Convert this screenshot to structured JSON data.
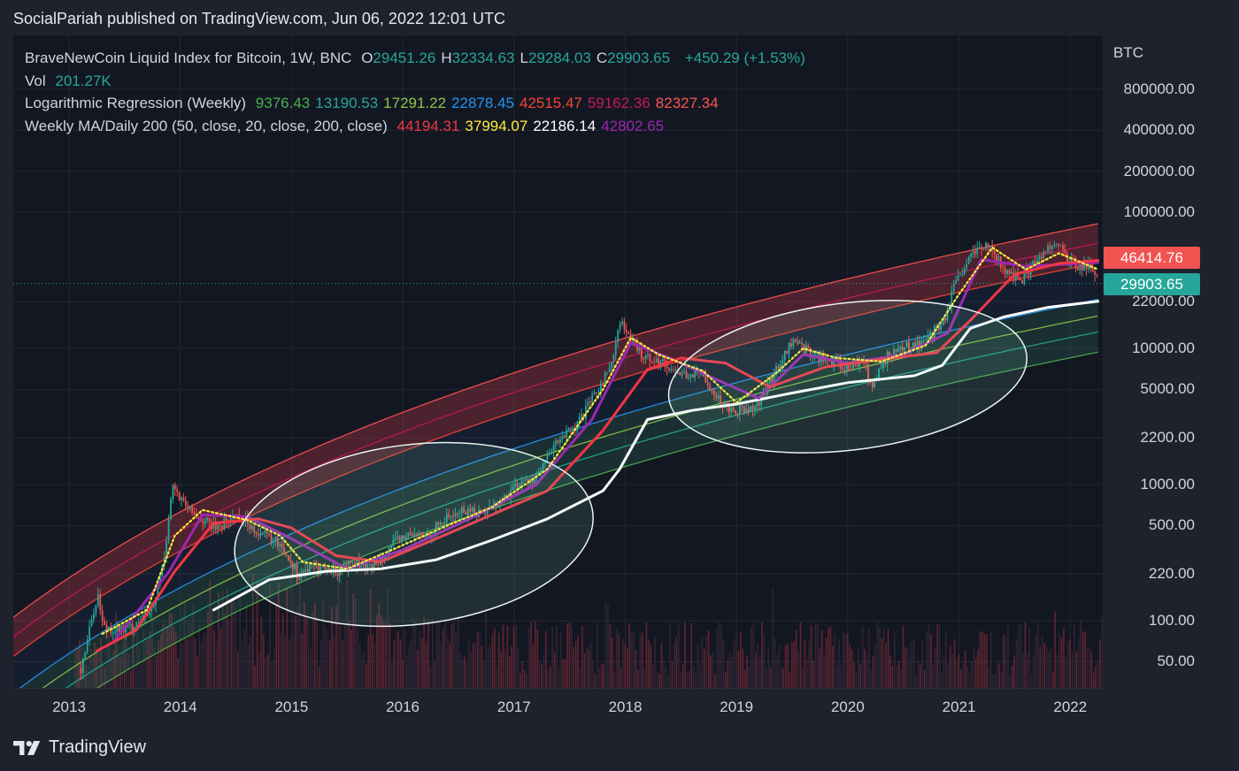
{
  "header": {
    "published_line": "SocialPariah published on TradingView.com, Jun 06, 2022 12:01 UTC"
  },
  "footer": {
    "brand": "TradingView"
  },
  "legend": {
    "symbol": {
      "name": "BraveNewCoin Liquid Index for Bitcoin, 1W, BNC",
      "ohlc": [
        {
          "k": "O",
          "v": "29451.26"
        },
        {
          "k": "H",
          "v": "32334.63"
        },
        {
          "k": "L",
          "v": "29284.03"
        },
        {
          "k": "C",
          "v": "29903.65"
        }
      ],
      "change": "+450.29 (+1.53%)"
    },
    "volume": {
      "label": "Vol",
      "value": "201.27K"
    },
    "log_regression": {
      "label": "Logarithmic Regression (Weekly)",
      "values": [
        {
          "text": "9376.43",
          "color": "#4caf50"
        },
        {
          "text": "13190.53",
          "color": "#26a69a"
        },
        {
          "text": "17291.22",
          "color": "#8bc34a"
        },
        {
          "text": "22878.45",
          "color": "#2196f3"
        },
        {
          "text": "42515.47",
          "color": "#f44336"
        },
        {
          "text": "59162.36",
          "color": "#c2185b"
        },
        {
          "text": "82327.34",
          "color": "#ff5252"
        }
      ]
    },
    "moving_averages": {
      "label": "Weekly MA/Daily 200 (50, close, 20, close, 200, close)",
      "values": [
        {
          "text": "44194.31",
          "color": "#f23645"
        },
        {
          "text": "37994.07",
          "color": "#ffeb3b"
        },
        {
          "text": "22186.14",
          "color": "#ffffff"
        },
        {
          "text": "42802.65",
          "color": "#9c27b0"
        }
      ]
    }
  },
  "price_axis": {
    "currency": "BTC",
    "ticks": [
      "800000.00",
      "400000.00",
      "200000.00",
      "100000.00",
      "22000.00",
      "10000.00",
      "5000.00",
      "2200.00",
      "1000.00",
      "500.00",
      "220.00",
      "100.00",
      "50.00"
    ],
    "tags": [
      {
        "text": "46414.76",
        "color": "#f05350"
      },
      {
        "text": "29903.65",
        "color": "#26a69a"
      }
    ]
  },
  "time_axis": {
    "years": [
      "2013",
      "2014",
      "2015",
      "2016",
      "2017",
      "2018",
      "2019",
      "2020",
      "2021",
      "2022"
    ]
  },
  "chart_data": {
    "type": "candlestick",
    "x_unit": "year",
    "y_scale": "log",
    "ylim": [
      35,
      1100000
    ],
    "xlim": [
      2012.5,
      2022.25
    ],
    "price_path": [
      [
        2013.1,
        45
      ],
      [
        2013.25,
        160
      ],
      [
        2013.3,
        90
      ],
      [
        2013.5,
        85
      ],
      [
        2013.75,
        120
      ],
      [
        2013.85,
        300
      ],
      [
        2013.92,
        1000
      ],
      [
        2014.0,
        750
      ],
      [
        2014.1,
        620
      ],
      [
        2014.3,
        480
      ],
      [
        2014.5,
        600
      ],
      [
        2014.7,
        450
      ],
      [
        2014.9,
        360
      ],
      [
        2015.05,
        220
      ],
      [
        2015.2,
        250
      ],
      [
        2015.4,
        230
      ],
      [
        2015.55,
        270
      ],
      [
        2015.7,
        240
      ],
      [
        2015.85,
        330
      ],
      [
        2016.0,
        420
      ],
      [
        2016.2,
        420
      ],
      [
        2016.4,
        580
      ],
      [
        2016.55,
        650
      ],
      [
        2016.7,
        620
      ],
      [
        2016.9,
        780
      ],
      [
        2017.0,
        970
      ],
      [
        2017.2,
        1150
      ],
      [
        2017.4,
        2200
      ],
      [
        2017.55,
        2600
      ],
      [
        2017.7,
        4300
      ],
      [
        2017.85,
        7000
      ],
      [
        2017.95,
        16000
      ],
      [
        2018.05,
        11000
      ],
      [
        2018.15,
        9000
      ],
      [
        2018.3,
        8000
      ],
      [
        2018.5,
        6500
      ],
      [
        2018.7,
        6400
      ],
      [
        2018.85,
        4000
      ],
      [
        2019.0,
        3500
      ],
      [
        2019.2,
        4000
      ],
      [
        2019.35,
        7000
      ],
      [
        2019.5,
        11500
      ],
      [
        2019.6,
        10000
      ],
      [
        2019.8,
        8200
      ],
      [
        2020.0,
        7200
      ],
      [
        2020.15,
        8500
      ],
      [
        2020.2,
        5000
      ],
      [
        2020.35,
        9000
      ],
      [
        2020.55,
        10500
      ],
      [
        2020.7,
        11500
      ],
      [
        2020.85,
        15500
      ],
      [
        2020.95,
        28000
      ],
      [
        2021.1,
        48000
      ],
      [
        2021.28,
        58000
      ],
      [
        2021.4,
        36000
      ],
      [
        2021.55,
        32000
      ],
      [
        2021.7,
        45000
      ],
      [
        2021.85,
        62000
      ],
      [
        2021.95,
        48000
      ],
      [
        2022.05,
        40000
      ],
      [
        2022.15,
        42000
      ],
      [
        2022.25,
        29903.65
      ]
    ],
    "ma_50w": [
      [
        2013.25,
        60
      ],
      [
        2013.6,
        85
      ],
      [
        2013.95,
        230
      ],
      [
        2014.3,
        520
      ],
      [
        2014.7,
        560
      ],
      [
        2015.0,
        480
      ],
      [
        2015.4,
        300
      ],
      [
        2015.8,
        270
      ],
      [
        2016.3,
        400
      ],
      [
        2016.8,
        600
      ],
      [
        2017.3,
        900
      ],
      [
        2017.8,
        2500
      ],
      [
        2018.2,
        7000
      ],
      [
        2018.5,
        8500
      ],
      [
        2018.9,
        7800
      ],
      [
        2019.3,
        5200
      ],
      [
        2019.8,
        7300
      ],
      [
        2020.3,
        8300
      ],
      [
        2020.8,
        9300
      ],
      [
        2021.1,
        16000
      ],
      [
        2021.5,
        35000
      ],
      [
        2021.9,
        42000
      ],
      [
        2022.25,
        44194.31
      ]
    ],
    "ma_20w": [
      [
        2013.3,
        80
      ],
      [
        2013.7,
        120
      ],
      [
        2013.95,
        420
      ],
      [
        2014.2,
        650
      ],
      [
        2014.6,
        550
      ],
      [
        2014.9,
        420
      ],
      [
        2015.1,
        270
      ],
      [
        2015.5,
        240
      ],
      [
        2015.9,
        330
      ],
      [
        2016.4,
        500
      ],
      [
        2016.8,
        680
      ],
      [
        2017.3,
        1300
      ],
      [
        2017.8,
        5000
      ],
      [
        2018.05,
        12000
      ],
      [
        2018.3,
        9000
      ],
      [
        2018.7,
        6800
      ],
      [
        2019.0,
        4000
      ],
      [
        2019.35,
        6500
      ],
      [
        2019.6,
        10000
      ],
      [
        2019.9,
        8500
      ],
      [
        2020.3,
        8000
      ],
      [
        2020.7,
        10500
      ],
      [
        2021.0,
        25000
      ],
      [
        2021.3,
        55000
      ],
      [
        2021.6,
        38000
      ],
      [
        2021.9,
        50000
      ],
      [
        2022.25,
        37994.07
      ]
    ],
    "ma_200d": [
      [
        2014.3,
        120
      ],
      [
        2014.8,
        200
      ],
      [
        2015.3,
        230
      ],
      [
        2015.8,
        240
      ],
      [
        2016.3,
        280
      ],
      [
        2016.8,
        390
      ],
      [
        2017.3,
        560
      ],
      [
        2017.8,
        900
      ],
      [
        2017.95,
        1300
      ],
      [
        2018.2,
        3000
      ],
      [
        2018.6,
        3500
      ],
      [
        2019.0,
        3900
      ],
      [
        2019.5,
        4700
      ],
      [
        2020.0,
        5600
      ],
      [
        2020.6,
        6300
      ],
      [
        2020.85,
        7500
      ],
      [
        2021.1,
        14000
      ],
      [
        2021.4,
        17000
      ],
      [
        2021.8,
        20000
      ],
      [
        2022.25,
        22186.14
      ]
    ],
    "ma_purple": [
      [
        2013.4,
        70
      ],
      [
        2013.9,
        230
      ],
      [
        2014.2,
        600
      ],
      [
        2014.6,
        580
      ],
      [
        2015.0,
        400
      ],
      [
        2015.5,
        240
      ],
      [
        2016.0,
        330
      ],
      [
        2016.6,
        560
      ],
      [
        2017.2,
        1000
      ],
      [
        2017.7,
        3000
      ],
      [
        2018.05,
        11000
      ],
      [
        2018.4,
        8500
      ],
      [
        2018.8,
        6000
      ],
      [
        2019.2,
        4300
      ],
      [
        2019.6,
        9000
      ],
      [
        2020.0,
        7800
      ],
      [
        2020.5,
        9000
      ],
      [
        2020.9,
        13000
      ],
      [
        2021.2,
        45000
      ],
      [
        2021.6,
        40000
      ],
      [
        2022.25,
        42802.65
      ]
    ],
    "regression_bands": {
      "values_at_last_bar": [
        9376.43,
        13190.53,
        17291.22,
        22878.45,
        42515.47,
        59162.36,
        82327.34
      ],
      "model": "log10(price) = a + b*log10(years since 2009.0)",
      "slope_b": 5.0
    },
    "highlight_ellipses": [
      {
        "cx": 2016.1,
        "cy": 430,
        "rx_years": 1.62,
        "ry_decades": 0.66,
        "tilt_deg": -7
      },
      {
        "cx": 2020.0,
        "cy": 6200,
        "rx_years": 1.62,
        "ry_decades": 0.54,
        "tilt_deg": -7
      }
    ],
    "volume_bars": {
      "scale": "relative",
      "peak_year": 2014.9
    }
  }
}
